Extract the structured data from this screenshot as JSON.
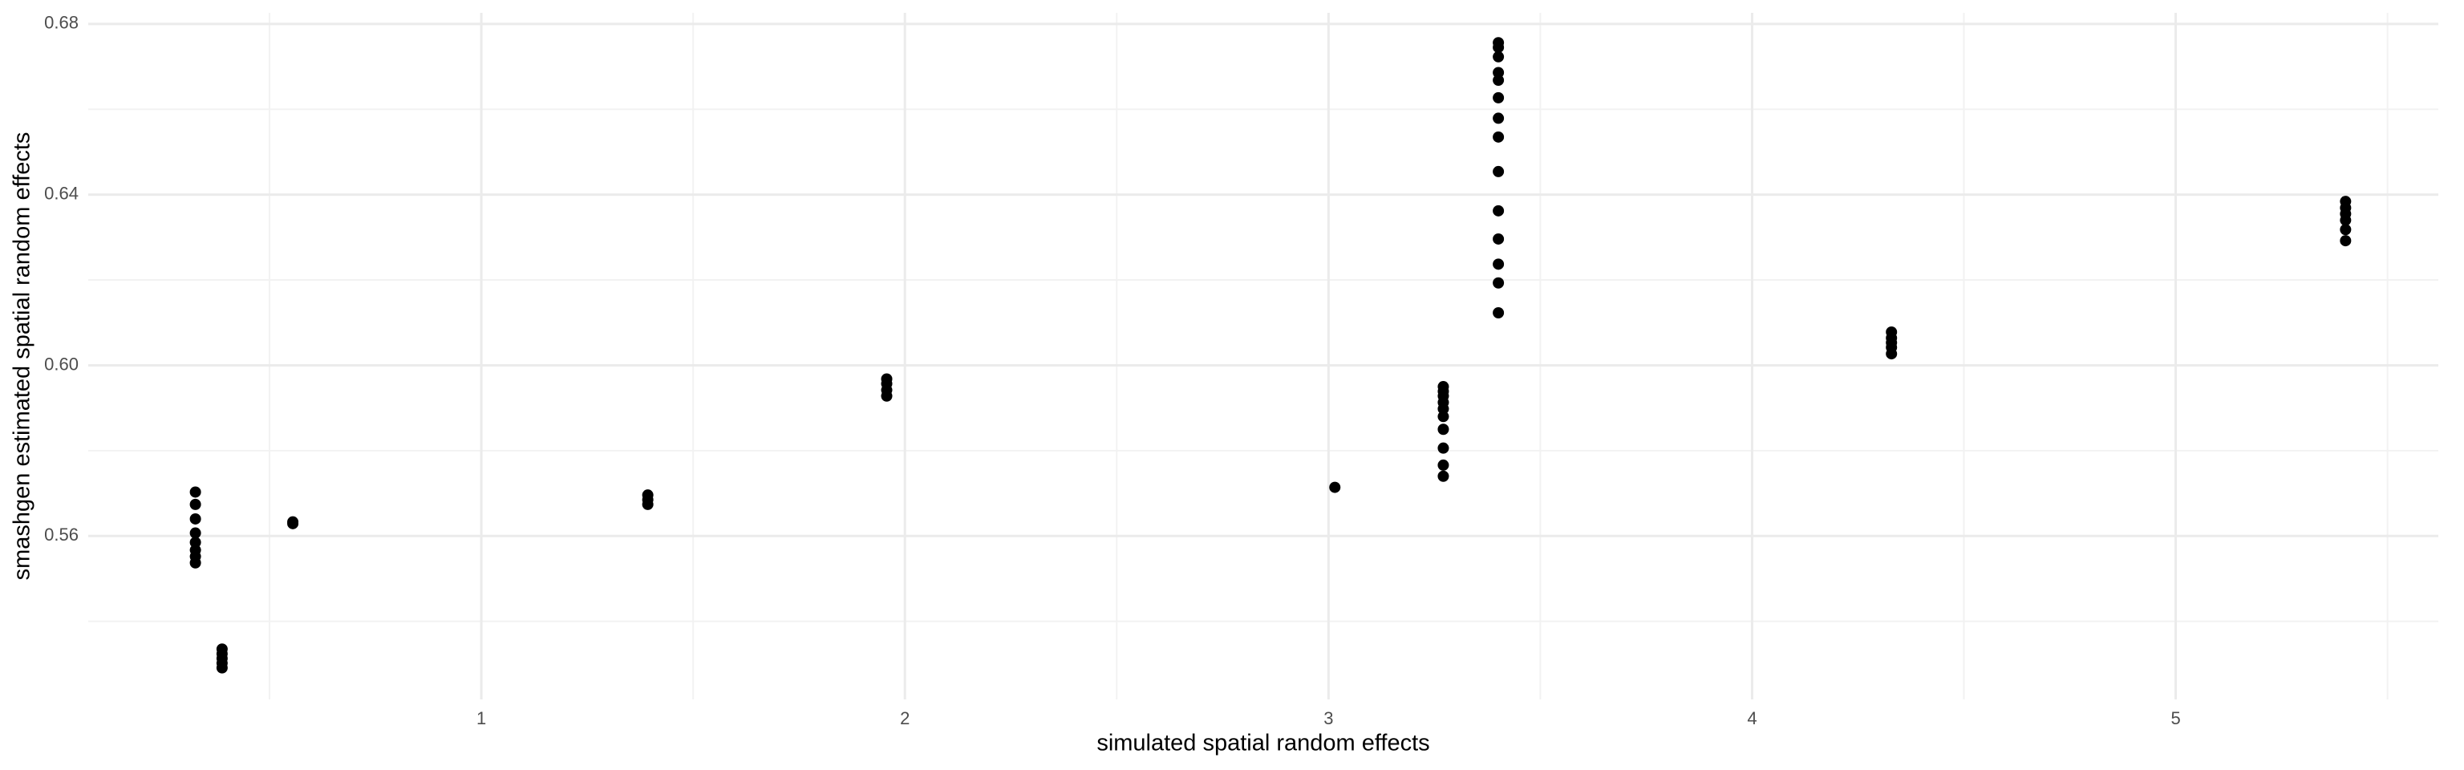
{
  "chart_data": {
    "type": "scatter",
    "x_label": "simulated spatial random effects",
    "y_label": "smashgen estimated spatial random effects",
    "color": "#000000",
    "x": [
      0.325,
      0.325,
      0.325,
      0.325,
      0.325,
      0.325,
      0.325,
      0.325,
      0.388,
      0.388,
      0.388,
      0.388,
      0.388,
      0.555,
      0.555,
      1.393,
      1.393,
      1.393,
      1.957,
      1.957,
      1.957,
      1.957,
      3.015,
      3.271,
      3.271,
      3.271,
      3.271,
      3.271,
      3.271,
      3.271,
      3.271,
      3.271,
      3.271,
      3.401,
      3.401,
      3.401,
      3.401,
      3.401,
      3.401,
      3.401,
      3.401,
      3.401,
      3.401,
      3.401,
      3.401,
      3.401,
      3.401,
      4.329,
      4.329,
      4.329,
      4.329,
      4.329,
      5.401,
      5.401,
      5.401,
      5.401,
      5.401,
      5.401
    ],
    "values": [
      0.5703,
      0.5674,
      0.564,
      0.5607,
      0.5585,
      0.5567,
      0.5552,
      0.5537,
      0.5335,
      0.5324,
      0.5313,
      0.5302,
      0.5291,
      0.5633,
      0.5629,
      0.5696,
      0.5685,
      0.5674,
      0.5968,
      0.5957,
      0.5942,
      0.5928,
      0.5714,
      0.595,
      0.5939,
      0.5928,
      0.5913,
      0.5898,
      0.588,
      0.585,
      0.5806,
      0.5766,
      0.574,
      0.6756,
      0.6745,
      0.6723,
      0.6686,
      0.6668,
      0.6627,
      0.6579,
      0.6535,
      0.6454,
      0.6362,
      0.6296,
      0.6237,
      0.6193,
      0.6123,
      0.6078,
      0.6064,
      0.6053,
      0.6042,
      0.6027,
      0.6384,
      0.6369,
      0.6355,
      0.634,
      0.6318,
      0.6292
    ],
    "xlim": [
      0.072,
      5.62
    ],
    "ylim": [
      0.5217,
      0.6826
    ],
    "xticks": [
      1,
      2,
      3,
      4,
      5
    ],
    "yticks": [
      0.56,
      {
        "value": 0.6,
        "label": "0.60"
      },
      0.64,
      0.68
    ],
    "xminorticks": [
      0.5,
      1.5,
      2.5,
      3.5,
      4.5,
      5.5
    ],
    "yminorticks": [
      0.54,
      0.58,
      0.62,
      0.66
    ],
    "grid": true
  }
}
